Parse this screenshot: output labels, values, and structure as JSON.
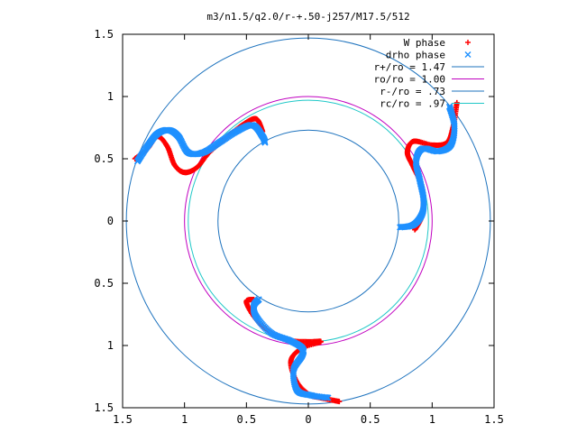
{
  "chart_data": {
    "type": "scatter",
    "title": "m3/n1.5/q2.0/r-+.50-j257/M17.5/512",
    "xlabel": "",
    "ylabel": "",
    "xlim": [
      -1.5,
      1.5
    ],
    "ylim": [
      -1.5,
      1.5
    ],
    "x_ticks": [
      -1.5,
      -1,
      -0.5,
      0,
      0.5,
      1,
      1.5
    ],
    "x_tick_labels": [
      "1.5",
      "1",
      "0.5",
      "0",
      "0.5",
      "1",
      "1.5"
    ],
    "y_ticks": [
      1.5,
      1,
      0.5,
      0,
      -0.5,
      -1,
      -1.5
    ],
    "y_tick_labels": [
      "1.5",
      "1",
      "0.5",
      "0",
      "0.5",
      "1",
      "1.5"
    ],
    "grid": false,
    "legend_position": "top-right",
    "series": [
      {
        "name": "W phase",
        "kind": "points",
        "marker": "+",
        "color": "#ff0000",
        "arms": [
          [
            [
              1.2,
              0.95
            ],
            [
              1.17,
              0.76
            ],
            [
              1.12,
              0.63
            ],
            [
              1.0,
              0.61
            ],
            [
              0.85,
              0.64
            ],
            [
              0.8,
              0.55
            ],
            [
              0.85,
              0.43
            ],
            [
              0.91,
              0.3
            ],
            [
              0.93,
              0.15
            ],
            [
              0.91,
              0.02
            ],
            [
              0.86,
              -0.07
            ]
          ],
          [
            [
              -1.4,
              0.5
            ],
            [
              -1.3,
              0.58
            ],
            [
              -1.22,
              0.68
            ],
            [
              -1.14,
              0.6
            ],
            [
              -1.08,
              0.45
            ],
            [
              -1.0,
              0.39
            ],
            [
              -0.9,
              0.43
            ],
            [
              -0.8,
              0.55
            ],
            [
              -0.65,
              0.68
            ],
            [
              -0.52,
              0.78
            ],
            [
              -0.42,
              0.82
            ],
            [
              -0.37,
              0.72
            ]
          ],
          [
            [
              0.25,
              -1.45
            ],
            [
              0.1,
              -1.42
            ],
            [
              0.0,
              -1.39
            ],
            [
              -0.1,
              -1.28
            ],
            [
              -0.14,
              -1.12
            ],
            [
              -0.05,
              -1.02
            ],
            [
              0.1,
              -0.97
            ],
            [
              0.0,
              -0.97
            ],
            [
              -0.15,
              -0.96
            ],
            [
              -0.3,
              -0.9
            ],
            [
              -0.43,
              -0.78
            ],
            [
              -0.5,
              -0.65
            ],
            [
              -0.44,
              -0.63
            ]
          ]
        ]
      },
      {
        "name": "drho phase",
        "kind": "points",
        "marker": "x",
        "color": "#1e90ff",
        "arms": [
          [
            [
              1.14,
              0.92
            ],
            [
              1.18,
              0.76
            ],
            [
              1.15,
              0.61
            ],
            [
              1.05,
              0.56
            ],
            [
              0.92,
              0.58
            ],
            [
              0.87,
              0.48
            ],
            [
              0.9,
              0.33
            ],
            [
              0.93,
              0.18
            ],
            [
              0.92,
              0.06
            ],
            [
              0.85,
              -0.03
            ],
            [
              0.74,
              -0.05
            ]
          ],
          [
            [
              -1.38,
              0.48
            ],
            [
              -1.3,
              0.6
            ],
            [
              -1.22,
              0.7
            ],
            [
              -1.13,
              0.73
            ],
            [
              -1.05,
              0.68
            ],
            [
              -0.97,
              0.55
            ],
            [
              -0.85,
              0.55
            ],
            [
              -0.72,
              0.63
            ],
            [
              -0.58,
              0.72
            ],
            [
              -0.45,
              0.77
            ],
            [
              -0.37,
              0.68
            ],
            [
              -0.35,
              0.63
            ]
          ],
          [
            [
              0.16,
              -1.42
            ],
            [
              0.02,
              -1.4
            ],
            [
              -0.09,
              -1.36
            ],
            [
              -0.12,
              -1.2
            ],
            [
              -0.05,
              -1.08
            ],
            [
              -0.05,
              -1.02
            ],
            [
              -0.15,
              -0.96
            ],
            [
              -0.3,
              -0.9
            ],
            [
              -0.42,
              -0.77
            ],
            [
              -0.44,
              -0.68
            ],
            [
              -0.4,
              -0.63
            ]
          ]
        ]
      },
      {
        "name": "r+/ro = 1.47",
        "kind": "circle",
        "radius": 1.47,
        "color": "#1e73be"
      },
      {
        "name": "ro/ro = 1.00",
        "kind": "circle",
        "radius": 1.0,
        "color": "#c000c0"
      },
      {
        "name": "r-/ro = .73",
        "kind": "circle",
        "radius": 0.73,
        "color": "#1e73be"
      },
      {
        "name": "rc/ro = .97",
        "kind": "circle",
        "radius": 0.97,
        "color": "#20c8c8"
      }
    ]
  }
}
